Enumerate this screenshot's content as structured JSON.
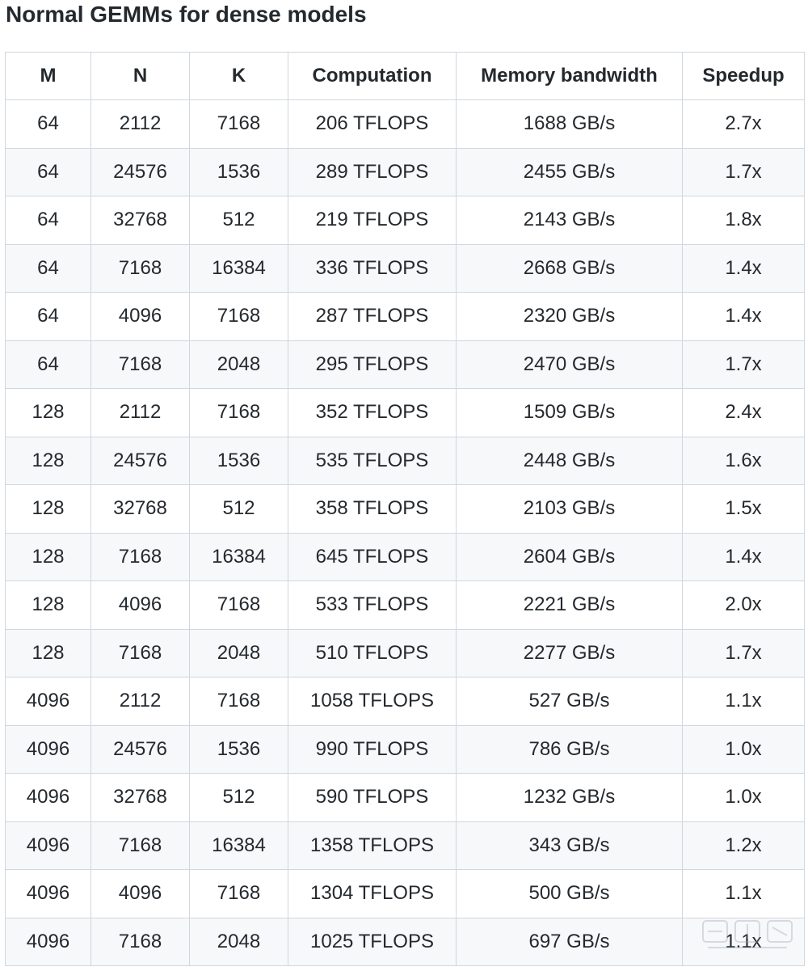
{
  "title": "Normal GEMMs for dense models",
  "table": {
    "headers": [
      "M",
      "N",
      "K",
      "Computation",
      "Memory bandwidth",
      "Speedup"
    ],
    "rows": [
      [
        "64",
        "2112",
        "7168",
        "206 TFLOPS",
        "1688 GB/s",
        "2.7x"
      ],
      [
        "64",
        "24576",
        "1536",
        "289 TFLOPS",
        "2455 GB/s",
        "1.7x"
      ],
      [
        "64",
        "32768",
        "512",
        "219 TFLOPS",
        "2143 GB/s",
        "1.8x"
      ],
      [
        "64",
        "7168",
        "16384",
        "336 TFLOPS",
        "2668 GB/s",
        "1.4x"
      ],
      [
        "64",
        "4096",
        "7168",
        "287 TFLOPS",
        "2320 GB/s",
        "1.4x"
      ],
      [
        "64",
        "7168",
        "2048",
        "295 TFLOPS",
        "2470 GB/s",
        "1.7x"
      ],
      [
        "128",
        "2112",
        "7168",
        "352 TFLOPS",
        "1509 GB/s",
        "2.4x"
      ],
      [
        "128",
        "24576",
        "1536",
        "535 TFLOPS",
        "2448 GB/s",
        "1.6x"
      ],
      [
        "128",
        "32768",
        "512",
        "358 TFLOPS",
        "2103 GB/s",
        "1.5x"
      ],
      [
        "128",
        "7168",
        "16384",
        "645 TFLOPS",
        "2604 GB/s",
        "1.4x"
      ],
      [
        "128",
        "4096",
        "7168",
        "533 TFLOPS",
        "2221 GB/s",
        "2.0x"
      ],
      [
        "128",
        "7168",
        "2048",
        "510 TFLOPS",
        "2277 GB/s",
        "1.7x"
      ],
      [
        "4096",
        "2112",
        "7168",
        "1058 TFLOPS",
        "527 GB/s",
        "1.1x"
      ],
      [
        "4096",
        "24576",
        "1536",
        "990 TFLOPS",
        "786 GB/s",
        "1.0x"
      ],
      [
        "4096",
        "32768",
        "512",
        "590 TFLOPS",
        "1232 GB/s",
        "1.0x"
      ],
      [
        "4096",
        "7168",
        "16384",
        "1358 TFLOPS",
        "343 GB/s",
        "1.2x"
      ],
      [
        "4096",
        "4096",
        "7168",
        "1304 TFLOPS",
        "500 GB/s",
        "1.1x"
      ],
      [
        "4096",
        "7168",
        "2048",
        "1025 TFLOPS",
        "697 GB/s",
        "1.1x"
      ]
    ]
  },
  "watermark": {
    "icon": "zhidx-logo-watermark"
  }
}
